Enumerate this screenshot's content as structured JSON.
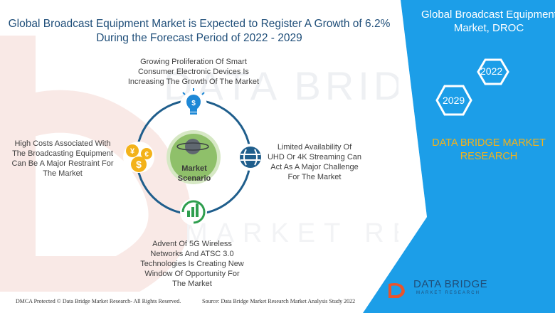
{
  "header": {
    "title_line1": "Global Broadcast Equipment Market is Expected to Register A Growth of 6.2%",
    "title_line2": "During the Forecast Period of 2022 - 2029"
  },
  "side_panel": {
    "title_line1": "Global Broadcast Equipment",
    "title_line2": "Market, DROC",
    "hex_year_top": "2022",
    "hex_year_bottom": "2029",
    "brand_line1": "DATA BRIDGE MARKET",
    "brand_line2": "RESEARCH"
  },
  "diagram": {
    "center_line1": "Market",
    "center_line2": "Scenario",
    "top": [
      "Growing Proliferation Of Smart",
      "Consumer Electronic Devices Is",
      "Increasing The Growth Of The Market"
    ],
    "right": [
      "Limited Availability Of",
      "UHD Or 4K Streaming Can",
      "Act As A Major Challenge",
      "For The Market"
    ],
    "bottom": [
      "Advent Of 5G Wireless",
      "Networks And ATSC 3.0",
      "Technologies Is Creating New",
      "Window Of Opportunity For",
      "The Market"
    ],
    "left": [
      "High Costs Associated With",
      "The Broadcasting Equipment",
      "Can Be A Major Restraint For",
      "The Market"
    ],
    "icons": {
      "top": "lightbulb-dollar-icon",
      "right": "globe-icon",
      "bottom": "growth-chart-icon",
      "left": "currency-coins-icon"
    }
  },
  "footer": {
    "left": "DMCA Protected © Data Bridge Market Research- All Rights Reserved.",
    "right": "Source: Data Bridge Market Research Market Analysis Study 2022"
  },
  "logo": {
    "name": "DATA BRIDGE",
    "sub": "MARKET RESEARCH"
  },
  "colors": {
    "panel_blue": "#1c9ee8",
    "title_blue": "#1f4e79",
    "ring_blue": "#1f5e8c",
    "green": "#2e9e4e",
    "gold": "#f3b21a"
  }
}
